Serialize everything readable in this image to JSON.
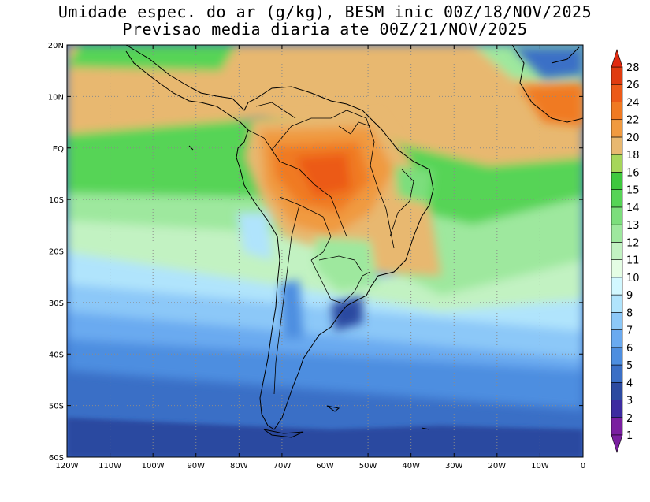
{
  "title": {
    "line1": "Umidade espec. do ar (g/kg), BESM inic 00Z/18/NOV/2025",
    "line2": "Previsao media diaria ate 00Z/21/NOV/2025"
  },
  "map": {
    "lon_range": [
      -120,
      0
    ],
    "lat_range": [
      -60,
      20
    ],
    "lat_labels": [
      "20N",
      "10N",
      "EQ",
      "10S",
      "20S",
      "30S",
      "40S",
      "50S",
      "60S"
    ],
    "lon_labels": [
      "120W",
      "110W",
      "100W",
      "90W",
      "80W",
      "70W",
      "60W",
      "50W",
      "40W",
      "30W",
      "20W",
      "10W",
      "0"
    ],
    "grid": "dotted",
    "field": "specific humidity g/kg"
  },
  "colorbar": {
    "labels": [
      "1",
      "2",
      "3",
      "4",
      "5",
      "6",
      "7",
      "8",
      "9",
      "10",
      "11",
      "12",
      "13",
      "14",
      "15",
      "16",
      "18",
      "20",
      "22",
      "24",
      "26",
      "28"
    ],
    "colors": [
      "#7a1fa0",
      "#3d2ba0",
      "#2c4aa0",
      "#3a6fc6",
      "#4d8ee0",
      "#6aaaf0",
      "#8cc8f8",
      "#b0e4fc",
      "#d2f8ff",
      "#e4fde4",
      "#c2f2c2",
      "#9ee89e",
      "#7cde7c",
      "#56d456",
      "#3ec83e",
      "#a6d65a",
      "#e8b870",
      "#f09a40",
      "#f07a22",
      "#ec5a18",
      "#e03c10"
    ],
    "top_color": "#e02a10",
    "bottom_color": "#7a1fa0"
  }
}
